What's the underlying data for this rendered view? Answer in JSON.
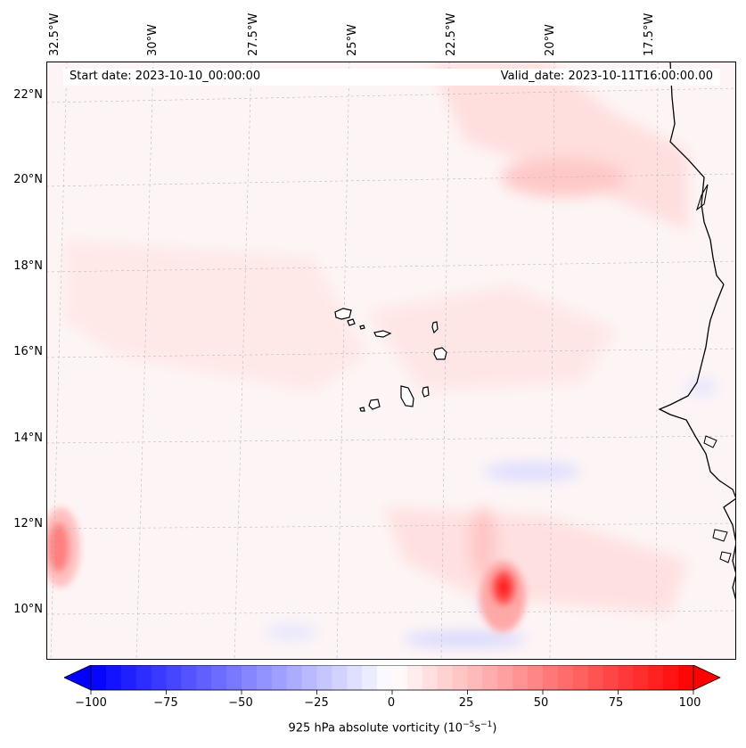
{
  "map": {
    "lon_labels": [
      "32.5°W",
      "30°W",
      "27.5°W",
      "25°W",
      "22.5°W",
      "20°W",
      "17.5°W"
    ],
    "lat_labels": [
      "22°N",
      "20°N",
      "18°N",
      "16°N",
      "14°N",
      "12°N",
      "10°N"
    ],
    "start_date": "Start date: 2023-10-10_00:00:00",
    "valid_date": "Valid_date: 2023-10-11T16:00:00.00"
  },
  "colorbar": {
    "min": -100,
    "max": 100,
    "ticks": [
      "−100",
      "−75",
      "−50",
      "−25",
      "0",
      "25",
      "50",
      "75",
      "100"
    ],
    "label_prefix": "925 hPa absolute vorticity (10",
    "label_exp1": "−5",
    "label_mid": "s",
    "label_exp2": "−1",
    "label_suffix": ")",
    "color_neg": "#0000ff",
    "color_zero": "#ffffff",
    "color_pos": "#ff0000"
  },
  "chart_data": {
    "type": "heatmap",
    "title": "925 hPa absolute vorticity",
    "variable": "925 hPa absolute vorticity",
    "units": "10^-5 s^-1",
    "lon_range": [
      -33.0,
      -16.0
    ],
    "lat_range": [
      9.0,
      22.7
    ],
    "value_range": [
      -100,
      100
    ],
    "features": [
      {
        "name": "strong positive vortex",
        "lon": -21.3,
        "lat": 10.5,
        "value": 90
      },
      {
        "name": "positive vortex west edge",
        "lon": -32.8,
        "lat": 11.4,
        "value": 60
      },
      {
        "name": "positive band north",
        "lon": -20.0,
        "lat": 20.0,
        "value": 20
      },
      {
        "name": "negative band south",
        "lon": -22.5,
        "lat": 9.5,
        "value": -25
      },
      {
        "name": "negative band near coast",
        "lon": -20.5,
        "lat": 13.0,
        "value": -25
      }
    ]
  }
}
